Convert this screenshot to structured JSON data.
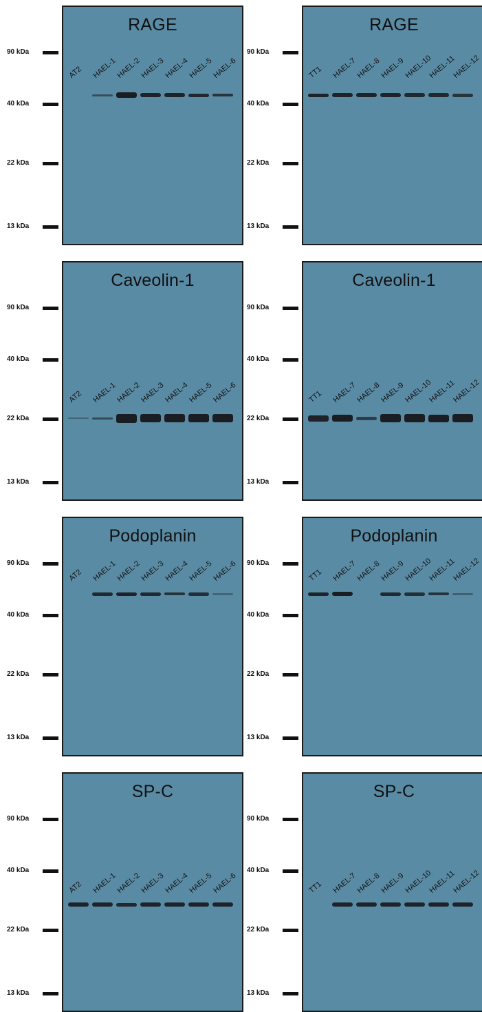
{
  "blots": [
    {
      "title": "RAGE",
      "markers": [
        "90 kDa",
        "40 kDa",
        "22 kDa",
        "13 kDa"
      ],
      "left": {
        "lanes": [
          "AT2",
          "HAEL-1",
          "HAEL-2",
          "HAEL-3",
          "HAEL-4",
          "HAEL-5",
          "HAEL-6"
        ]
      },
      "right": {
        "lanes": [
          "TT1",
          "HAEL-7",
          "HAEL-8",
          "HAEL-9",
          "HAEL-10",
          "HAEL-11",
          "HAEL-12"
        ]
      }
    },
    {
      "title": "Caveolin-1",
      "markers": [
        "90 kDa",
        "40 kDa",
        "22 kDa",
        "13 kDa"
      ],
      "left": {
        "lanes": [
          "AT2",
          "HAEL-1",
          "HAEL-2",
          "HAEL-3",
          "HAEL-4",
          "HAEL-5",
          "HAEL-6"
        ]
      },
      "right": {
        "lanes": [
          "TT1",
          "HAEL-7",
          "HAEL-8",
          "HAEL-9",
          "HAEL-10",
          "HAEL-11",
          "HAEL-12"
        ]
      }
    },
    {
      "title": "Podoplanin",
      "markers": [
        "90 kDa",
        "40 kDa",
        "22 kDa",
        "13 kDa"
      ],
      "left": {
        "lanes": [
          "AT2",
          "HAEL-1",
          "HAEL-2",
          "HAEL-3",
          "HAEL-4",
          "HAEL-5",
          "HAEL-6"
        ]
      },
      "right": {
        "lanes": [
          "TT1",
          "HAEL-7",
          "HAEL-8",
          "HAEL-9",
          "HAEL-10",
          "HAEL-11",
          "HAEL-12"
        ]
      }
    },
    {
      "title": "SP-C",
      "markers": [
        "90 kDa",
        "40 kDa",
        "22 kDa",
        "13 kDa"
      ],
      "left": {
        "lanes": [
          "AT2",
          "HAEL-1",
          "HAEL-2",
          "HAEL-3",
          "HAEL-4",
          "HAEL-5",
          "HAEL-6"
        ]
      },
      "right": {
        "lanes": [
          "TT1",
          "HAEL-7",
          "HAEL-8",
          "HAEL-9",
          "HAEL-10",
          "HAEL-11",
          "HAEL-12"
        ]
      }
    }
  ]
}
